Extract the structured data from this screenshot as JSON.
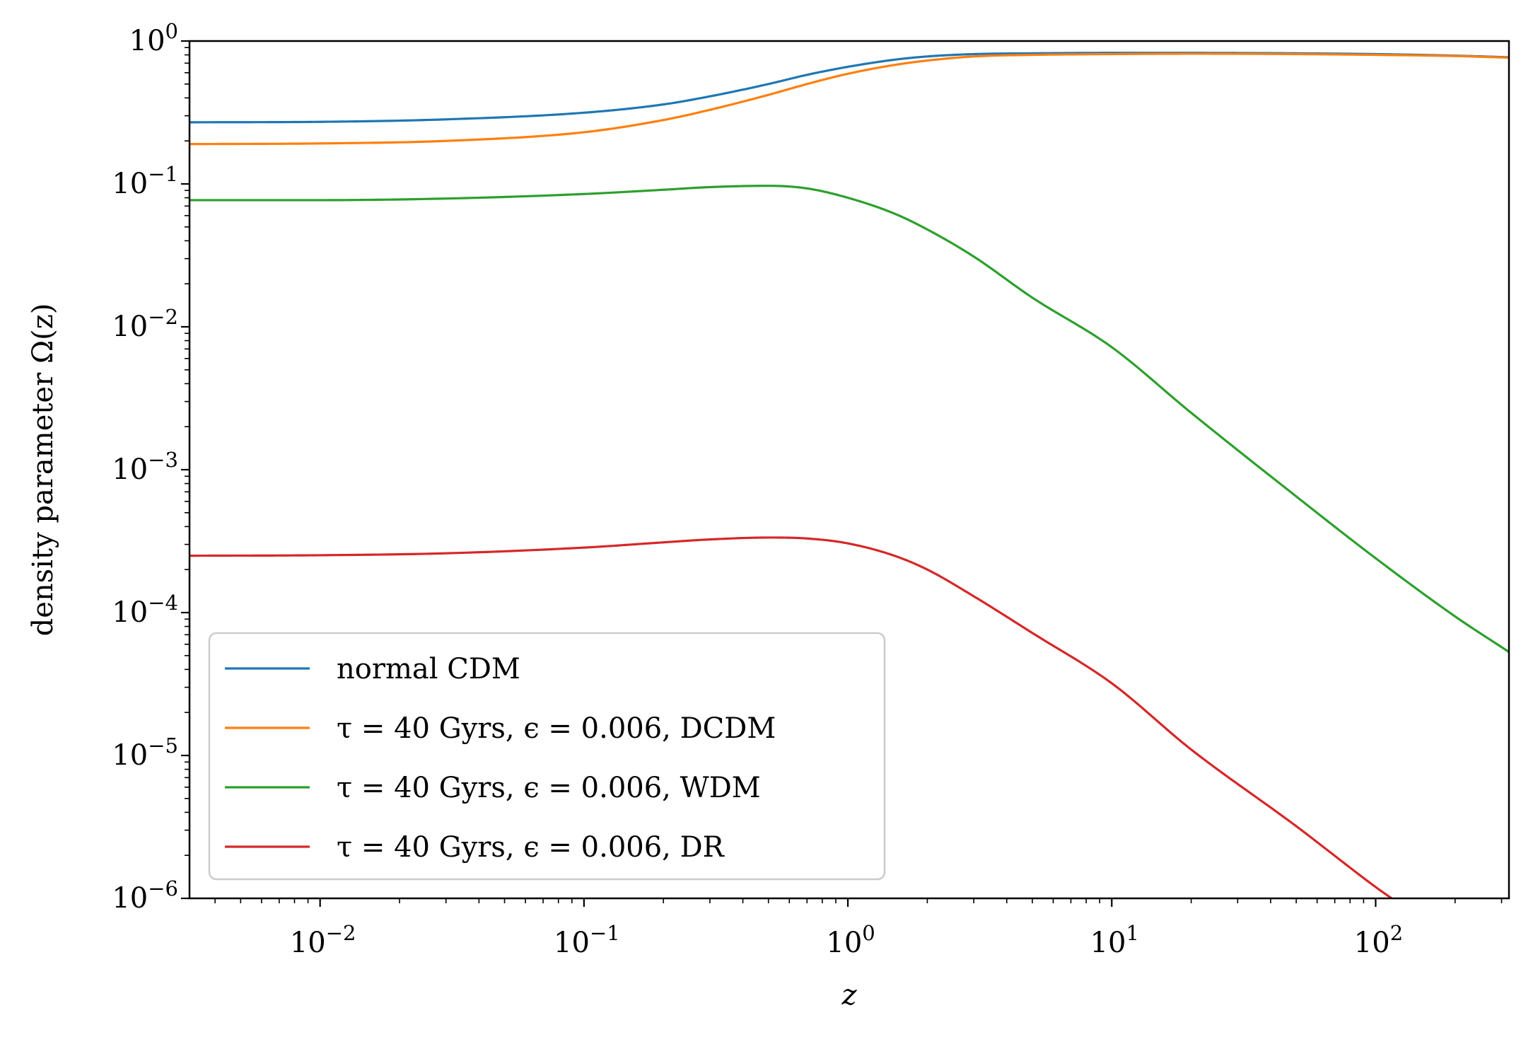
{
  "chart_data": {
    "type": "line",
    "title": "",
    "xlabel": "z",
    "ylabel": "density parameter Ω(z)",
    "xscale": "log",
    "yscale": "log",
    "xlim": [
      0.0032,
      320
    ],
    "ylim": [
      1e-06,
      1
    ],
    "x_tick_labels": [
      {
        "value": 0.01,
        "base": "10",
        "exp": "−2"
      },
      {
        "value": 0.1,
        "base": "10",
        "exp": "−1"
      },
      {
        "value": 1,
        "base": "10",
        "exp": "0"
      },
      {
        "value": 10,
        "base": "10",
        "exp": "1"
      },
      {
        "value": 100,
        "base": "10",
        "exp": "2"
      }
    ],
    "y_tick_labels": [
      {
        "value": 1,
        "base": "10",
        "exp": "0"
      },
      {
        "value": 0.1,
        "base": "10",
        "exp": "−1"
      },
      {
        "value": 0.01,
        "base": "10",
        "exp": "−2"
      },
      {
        "value": 0.001,
        "base": "10",
        "exp": "−3"
      },
      {
        "value": 0.0001,
        "base": "10",
        "exp": "−4"
      },
      {
        "value": 1e-05,
        "base": "10",
        "exp": "−5"
      },
      {
        "value": 1e-06,
        "base": "10",
        "exp": "−6"
      }
    ],
    "legend_position": "lower-left",
    "series": [
      {
        "name": "normal CDM",
        "color": "#1f77b4",
        "x": [
          0.0032,
          0.01,
          0.03,
          0.1,
          0.2,
          0.3,
          0.5,
          0.7,
          1,
          1.5,
          2,
          3,
          5,
          10,
          20,
          50,
          100,
          200,
          320
        ],
        "y": [
          0.27,
          0.272,
          0.283,
          0.315,
          0.36,
          0.41,
          0.5,
          0.58,
          0.66,
          0.74,
          0.78,
          0.81,
          0.82,
          0.826,
          0.826,
          0.82,
          0.81,
          0.79,
          0.77
        ]
      },
      {
        "name": "τ = 40 Gyrs, ϵ = 0.006, DCDM",
        "color": "#ff7f0e",
        "x": [
          0.0032,
          0.01,
          0.03,
          0.1,
          0.2,
          0.3,
          0.5,
          0.7,
          1,
          1.5,
          2,
          3,
          5,
          10,
          20,
          50,
          100,
          200,
          320
        ],
        "y": [
          0.19,
          0.192,
          0.2,
          0.23,
          0.28,
          0.33,
          0.42,
          0.5,
          0.59,
          0.68,
          0.73,
          0.78,
          0.8,
          0.81,
          0.815,
          0.81,
          0.8,
          0.785,
          0.765
        ]
      },
      {
        "name": "τ = 40 Gyrs, ϵ = 0.006, WDM",
        "color": "#2ca02c",
        "x": [
          0.0032,
          0.01,
          0.03,
          0.1,
          0.2,
          0.3,
          0.5,
          0.7,
          1,
          1.5,
          2,
          3,
          5,
          10,
          20,
          50,
          100,
          200,
          320
        ],
        "y": [
          0.077,
          0.077,
          0.079,
          0.085,
          0.091,
          0.095,
          0.097,
          0.093,
          0.08,
          0.062,
          0.048,
          0.031,
          0.016,
          0.0072,
          0.0025,
          0.00065,
          0.00024,
          9.4e-05,
          5.3e-05
        ]
      },
      {
        "name": "τ = 40 Gyrs, ϵ = 0.006, DR",
        "color": "#d62728",
        "x": [
          0.0032,
          0.01,
          0.03,
          0.1,
          0.2,
          0.3,
          0.5,
          0.7,
          1,
          1.5,
          2,
          3,
          5,
          10,
          20,
          50,
          100,
          115
        ],
        "y": [
          0.00025,
          0.000252,
          0.00026,
          0.000285,
          0.00031,
          0.000325,
          0.000335,
          0.00033,
          0.000305,
          0.00025,
          0.0002,
          0.00013,
          7.2e-05,
          3.2e-05,
          1.1e-05,
          3.2e-06,
          1.2e-06,
          1e-06
        ]
      }
    ]
  }
}
